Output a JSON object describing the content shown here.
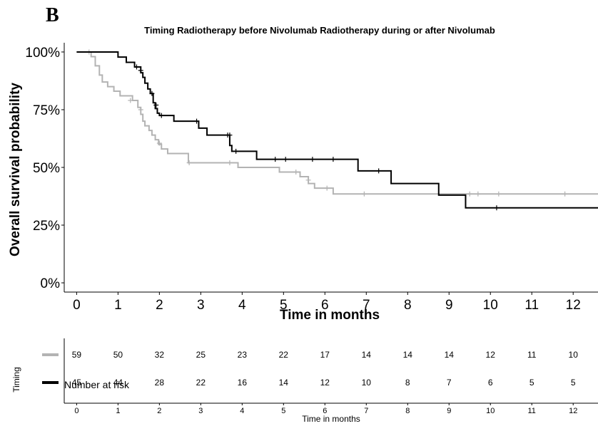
{
  "panel_label": "B",
  "chart_data": {
    "type": "line",
    "title": "Timing Radiotherapy before Nivolumab Radiotherapy during or after Nivolumab",
    "xlabel": "Time in months",
    "ylabel": "Overall survival probability",
    "xlim": [
      -0.3,
      12.6
    ],
    "ylim": [
      -0.04,
      1.04
    ],
    "x_ticks": [
      "0",
      "1",
      "2",
      "3",
      "4",
      "5",
      "6",
      "7",
      "8",
      "9",
      "10",
      "11",
      "12"
    ],
    "y_ticks": [
      {
        "value": 0,
        "label": "0%"
      },
      {
        "value": 0.25,
        "label": "25%"
      },
      {
        "value": 0.5,
        "label": "50%"
      },
      {
        "value": 0.75,
        "label": "75%"
      },
      {
        "value": 1.0,
        "label": "100%"
      }
    ],
    "grid": false,
    "series": [
      {
        "name": "Radiotherapy before Nivolumab",
        "color": "#b3b3b3",
        "steps": [
          [
            0,
            1.0
          ],
          [
            0.35,
            0.98
          ],
          [
            0.45,
            0.94
          ],
          [
            0.55,
            0.9
          ],
          [
            0.62,
            0.87
          ],
          [
            0.75,
            0.85
          ],
          [
            0.9,
            0.83
          ],
          [
            1.05,
            0.81
          ],
          [
            1.35,
            0.79
          ],
          [
            1.48,
            0.76
          ],
          [
            1.55,
            0.73
          ],
          [
            1.6,
            0.7
          ],
          [
            1.65,
            0.68
          ],
          [
            1.75,
            0.66
          ],
          [
            1.82,
            0.64
          ],
          [
            1.9,
            0.62
          ],
          [
            1.98,
            0.6
          ],
          [
            2.05,
            0.58
          ],
          [
            2.2,
            0.56
          ],
          [
            2.7,
            0.52
          ],
          [
            3.9,
            0.5
          ],
          [
            4.9,
            0.48
          ],
          [
            5.4,
            0.46
          ],
          [
            5.6,
            0.43
          ],
          [
            5.75,
            0.41
          ],
          [
            6.2,
            0.385
          ],
          [
            12.6,
            0.385
          ]
        ],
        "censor": [
          [
            0.3,
            1.0
          ],
          [
            1.3,
            0.79
          ],
          [
            1.55,
            0.75
          ],
          [
            2.0,
            0.605
          ],
          [
            2.72,
            0.52
          ],
          [
            3.7,
            0.52
          ],
          [
            5.3,
            0.48
          ],
          [
            5.6,
            0.445
          ],
          [
            6.05,
            0.41
          ],
          [
            6.95,
            0.385
          ],
          [
            9.5,
            0.385
          ],
          [
            9.7,
            0.385
          ],
          [
            10.2,
            0.385
          ],
          [
            11.8,
            0.385
          ]
        ]
      },
      {
        "name": "Radiotherapy during or after Nivolumab",
        "color": "#000000",
        "steps": [
          [
            0,
            1.0
          ],
          [
            1.0,
            0.978
          ],
          [
            1.2,
            0.955
          ],
          [
            1.4,
            0.935
          ],
          [
            1.55,
            0.91
          ],
          [
            1.6,
            0.89
          ],
          [
            1.65,
            0.865
          ],
          [
            1.72,
            0.84
          ],
          [
            1.78,
            0.82
          ],
          [
            1.85,
            0.78
          ],
          [
            1.9,
            0.755
          ],
          [
            1.95,
            0.735
          ],
          [
            2.0,
            0.725
          ],
          [
            2.35,
            0.7
          ],
          [
            2.95,
            0.67
          ],
          [
            3.15,
            0.64
          ],
          [
            3.7,
            0.595
          ],
          [
            3.75,
            0.57
          ],
          [
            4.35,
            0.535
          ],
          [
            6.8,
            0.485
          ],
          [
            7.6,
            0.43
          ],
          [
            8.75,
            0.38
          ],
          [
            9.4,
            0.325
          ],
          [
            12.6,
            0.325
          ]
        ],
        "censor": [
          [
            1.45,
            0.935
          ],
          [
            1.55,
            0.92
          ],
          [
            1.82,
            0.82
          ],
          [
            1.92,
            0.77
          ],
          [
            2.05,
            0.725
          ],
          [
            2.9,
            0.7
          ],
          [
            3.65,
            0.64
          ],
          [
            3.7,
            0.64
          ],
          [
            3.85,
            0.57
          ],
          [
            4.8,
            0.535
          ],
          [
            5.05,
            0.535
          ],
          [
            5.7,
            0.535
          ],
          [
            6.2,
            0.535
          ],
          [
            7.3,
            0.485
          ],
          [
            10.15,
            0.325
          ]
        ]
      }
    ]
  },
  "risk_table": {
    "title": "Number at risk",
    "ylabel": "Timing",
    "xlabel": "Time in months",
    "x_ticks": [
      "0",
      "1",
      "2",
      "3",
      "4",
      "5",
      "6",
      "7",
      "8",
      "9",
      "10",
      "11",
      "12"
    ],
    "rows": [
      {
        "color": "#b3b3b3",
        "values": [
          "59",
          "50",
          "32",
          "25",
          "23",
          "22",
          "17",
          "14",
          "14",
          "14",
          "12",
          "11",
          "10"
        ]
      },
      {
        "color": "#000000",
        "values": [
          "45",
          "44",
          "28",
          "22",
          "16",
          "14",
          "12",
          "10",
          "8",
          "7",
          "6",
          "5",
          "5"
        ]
      }
    ]
  }
}
